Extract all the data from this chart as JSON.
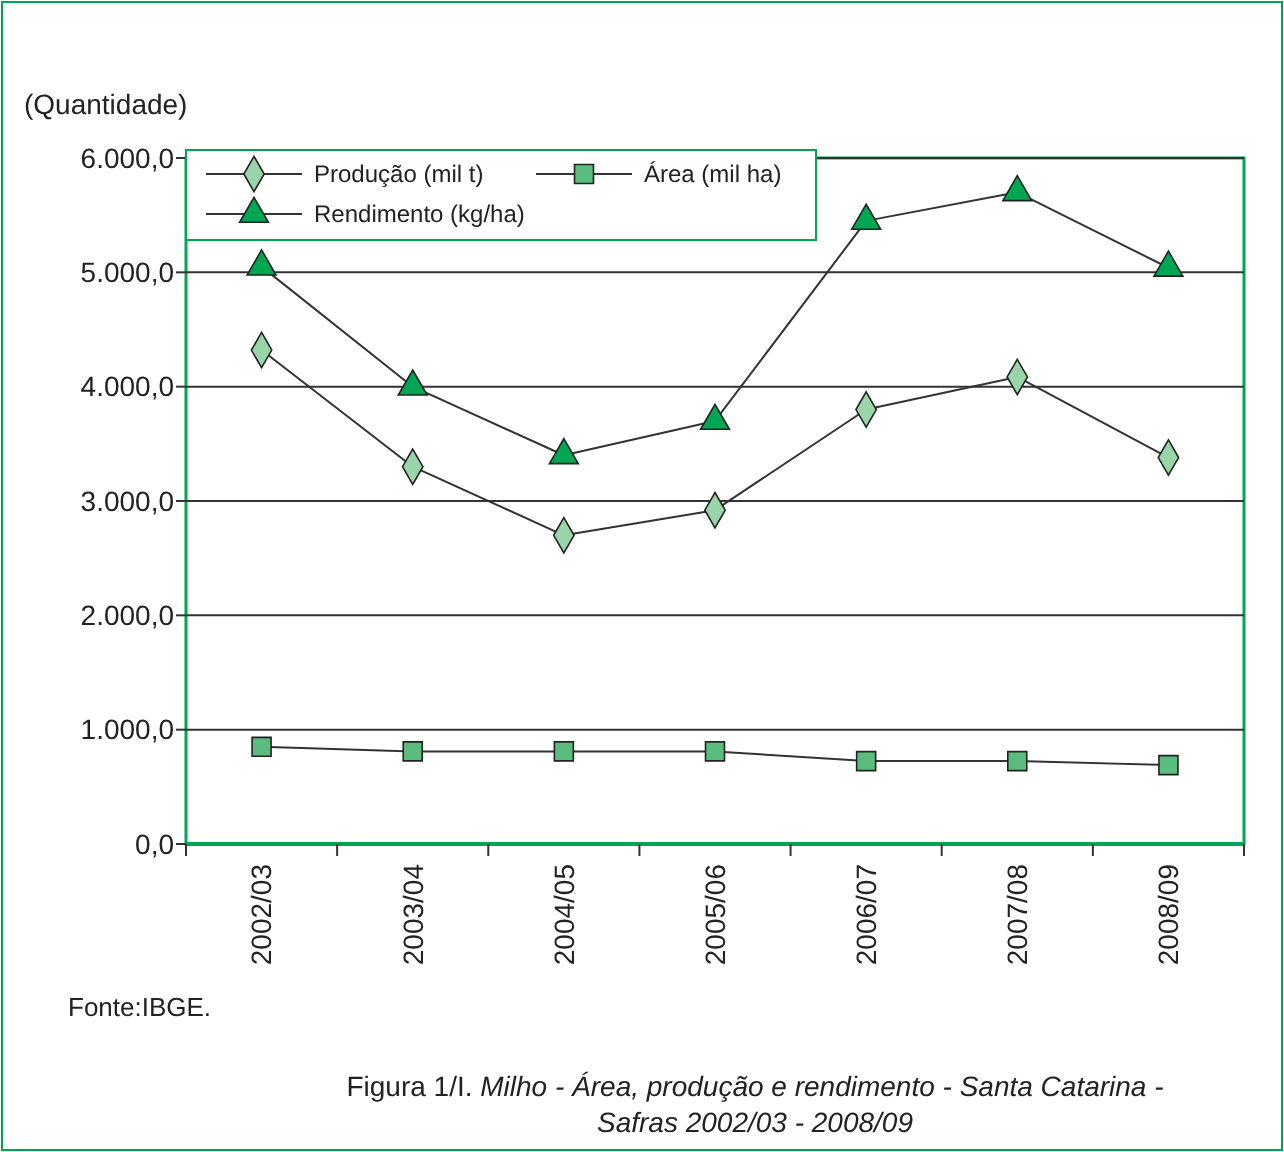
{
  "chart_data": {
    "type": "line",
    "title": "Figura 1/I. Milho - Área, produção e rendimento - Santa Catarina - Safras 2002/03 - 2008/09",
    "ylabel": "(Quantidade)",
    "annotations": [
      "Fonte:IBGE."
    ],
    "categories": [
      "2002/03",
      "2003/04",
      "2004/05",
      "2005/06",
      "2006/07",
      "2007/08",
      "2008/09"
    ],
    "series": [
      {
        "name": "Produção (mil t)",
        "color": "#99d5a8",
        "marker": "diamond",
        "values": [
          4320,
          3300,
          2700,
          2920,
          3800,
          4085,
          3380
        ]
      },
      {
        "name": "Área (mil ha)",
        "color": "#5bbd7d",
        "marker": "square",
        "values": [
          850,
          810,
          810,
          810,
          725,
          725,
          690
        ]
      },
      {
        "name": "Rendimento (kg/ha)",
        "color": "#00a651",
        "marker": "triangle",
        "values": [
          5050,
          4000,
          3400,
          3700,
          5450,
          5700,
          5040
        ]
      }
    ],
    "ylim": [
      0,
      6000
    ],
    "yticks": [
      {
        "value": 0,
        "label": "0,0"
      },
      {
        "value": 1000,
        "label": "1.000,0"
      },
      {
        "value": 2000,
        "label": "2.000,0"
      },
      {
        "value": 3000,
        "label": "3.000,0"
      },
      {
        "value": 4000,
        "label": "4.000,0"
      },
      {
        "value": 5000,
        "label": "5.000,0"
      },
      {
        "value": 6000,
        "label": "6.000,0"
      }
    ],
    "grid": "y",
    "legend": "top left",
    "line_style": "solid"
  }
}
